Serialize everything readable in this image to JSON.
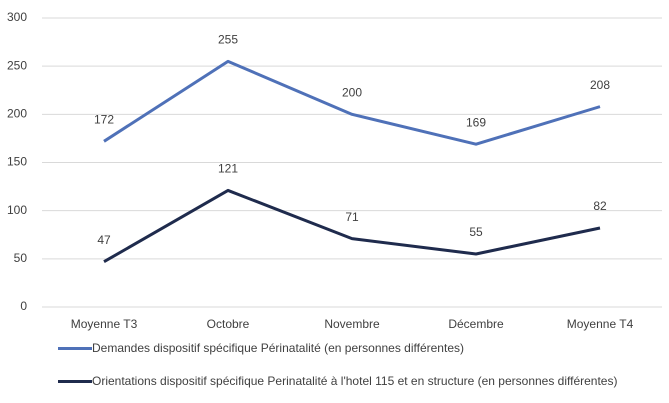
{
  "chart_data": {
    "type": "line",
    "categories": [
      "Moyenne T3",
      "Octobre",
      "Novembre",
      "Décembre",
      "Moyenne T4"
    ],
    "series": [
      {
        "name": "Demandes dispositif spécifique Périnatalité (en personnes différentes)",
        "color": "#4f71b8",
        "values": [
          172,
          255,
          200,
          169,
          208
        ]
      },
      {
        "name": "Orientations dispositif spécifique Perinatalité à l'hotel 115 et en structure (en personnes différentes)",
        "color": "#1f2b4d",
        "values": [
          47,
          121,
          71,
          55,
          82
        ]
      }
    ],
    "ylim": [
      0,
      300
    ],
    "yticks": [
      0,
      50,
      100,
      150,
      200,
      250,
      300
    ],
    "grid": true
  }
}
